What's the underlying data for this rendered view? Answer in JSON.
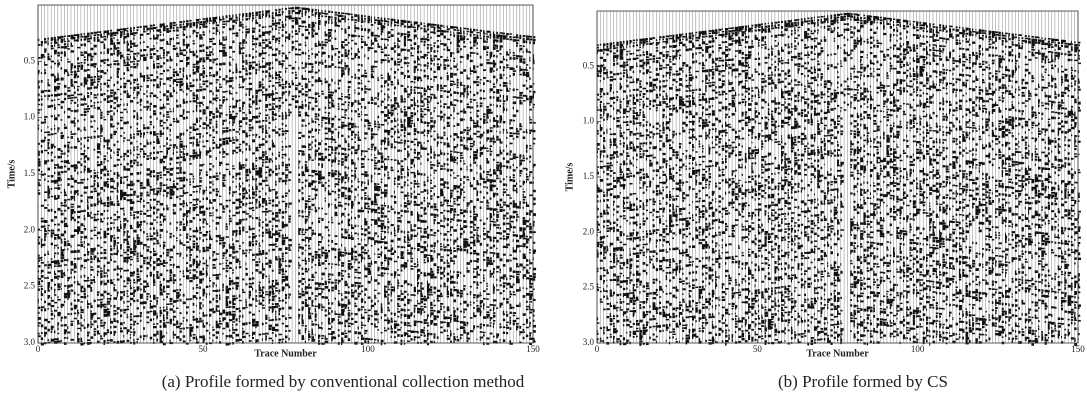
{
  "chart_data": [
    {
      "type": "seismic",
      "caption": "(a) Profile formed by conventional collection method",
      "x_label": "Trace Number",
      "y_label": "Time/s",
      "y_inverted": true,
      "xlim": [
        0,
        150
      ],
      "xticks": [
        0,
        50,
        100,
        150
      ],
      "ylim": [
        0,
        3
      ],
      "yticks": [
        {
          "value": 0.5,
          "label": "0.5"
        },
        {
          "value": 1,
          "label": "1.0"
        },
        {
          "value": 1.5,
          "label": "1.5"
        },
        {
          "value": 2,
          "label": "2.0"
        },
        {
          "value": 2.5,
          "label": "2.5"
        },
        {
          "value": 3,
          "label": "3.0"
        }
      ]
    },
    {
      "type": "seismic",
      "caption": "(b) Profile formed by CS",
      "x_label": "Trace Number",
      "y_label": "Time/s",
      "y_inverted": true,
      "xlim": [
        0,
        150
      ],
      "xticks": [
        0,
        50,
        100,
        150
      ],
      "ylim": [
        0,
        3
      ],
      "yticks": [
        {
          "value": 0.5,
          "label": "0.5"
        },
        {
          "value": 1,
          "label": "1.0"
        },
        {
          "value": 1.5,
          "label": "1.5"
        },
        {
          "value": 2,
          "label": "2.0"
        },
        {
          "value": 2.5,
          "label": "2.5"
        },
        {
          "value": 3,
          "label": "3.0"
        }
      ]
    }
  ]
}
